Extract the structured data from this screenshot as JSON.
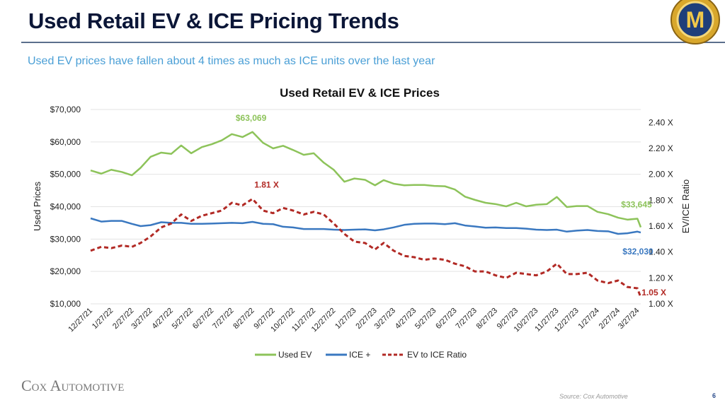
{
  "header": {
    "title": "Used Retail EV & ICE Pricing Trends",
    "subtitle": "Used EV prices have fallen about 4 times as much as ICE units over the last year",
    "logo_text": "M"
  },
  "footer": {
    "brand": "Cox Automotive",
    "source": "Source: Cox Automotive",
    "page": "6"
  },
  "colors": {
    "ev": "#8dc35a",
    "ice": "#3a78c0",
    "ratio": "#b22a25",
    "title": "#0b1637",
    "subtitle": "#4a9fd6",
    "grid": "#e3e3e3"
  },
  "chart_data": {
    "type": "line",
    "title": "Used Retail EV & ICE Prices",
    "ylabel": "Used Prices",
    "y2label": "EV/ICE Ratio",
    "ylim": [
      10000,
      70000
    ],
    "y2lim": [
      1.0,
      2.5
    ],
    "grid": true,
    "legend": "bottom",
    "yticks": [
      "$10,000",
      "$20,000",
      "$30,000",
      "$40,000",
      "$50,000",
      "$60,000",
      "$70,000"
    ],
    "y2ticks": [
      "1.00 X",
      "1.20 X",
      "1.40 X",
      "1.60 X",
      "1.80 X",
      "2.00 X",
      "2.20 X",
      "2.40 X"
    ],
    "xticks": [
      "12/27/21",
      "1/27/22",
      "2/27/22",
      "3/27/22",
      "4/27/22",
      "5/27/22",
      "6/27/22",
      "7/27/22",
      "8/27/22",
      "9/27/22",
      "10/27/22",
      "11/27/22",
      "12/27/22",
      "1/27/23",
      "2/27/23",
      "3/27/23",
      "4/27/23",
      "5/27/23",
      "6/27/23",
      "7/27/23",
      "8/27/23",
      "9/27/23",
      "10/27/23",
      "11/27/23",
      "12/27/23",
      "1/27/24",
      "2/27/24",
      "3/27/24"
    ],
    "x": [
      "2021-12-27",
      "2022-01-12",
      "2022-01-27",
      "2022-02-12",
      "2022-02-27",
      "2022-03-12",
      "2022-03-27",
      "2022-04-12",
      "2022-04-27",
      "2022-05-12",
      "2022-05-27",
      "2022-06-12",
      "2022-06-27",
      "2022-07-12",
      "2022-07-27",
      "2022-08-12",
      "2022-08-27",
      "2022-09-12",
      "2022-09-27",
      "2022-10-12",
      "2022-10-27",
      "2022-11-12",
      "2022-11-27",
      "2022-12-12",
      "2022-12-27",
      "2023-01-12",
      "2023-01-27",
      "2023-02-12",
      "2023-02-27",
      "2023-03-12",
      "2023-03-27",
      "2023-04-12",
      "2023-04-27",
      "2023-05-12",
      "2023-05-27",
      "2023-06-12",
      "2023-06-27",
      "2023-07-12",
      "2023-07-27",
      "2023-08-12",
      "2023-08-27",
      "2023-09-12",
      "2023-09-27",
      "2023-10-12",
      "2023-10-27",
      "2023-11-12",
      "2023-11-27",
      "2023-12-12",
      "2023-12-27",
      "2024-01-12",
      "2024-01-27",
      "2024-02-12",
      "2024-02-27",
      "2024-03-12",
      "2024-03-27",
      "2024-04-01"
    ],
    "series": [
      {
        "name": "Used EV",
        "axis": "left",
        "style": "solid",
        "values": [
          51200,
          50200,
          51400,
          50700,
          49700,
          52000,
          55400,
          56700,
          56300,
          58900,
          56500,
          58400,
          59300,
          60500,
          62400,
          61500,
          63069,
          59700,
          58000,
          58800,
          57500,
          56000,
          56500,
          53600,
          51400,
          47700,
          48700,
          48300,
          46600,
          48200,
          47100,
          46600,
          46700,
          46700,
          46400,
          46300,
          45300,
          43100,
          42100,
          41200,
          40800,
          40100,
          41200,
          40100,
          40600,
          40800,
          43000,
          39900,
          40200,
          40200,
          38400,
          37700,
          36600,
          36000,
          36300,
          33645
        ]
      },
      {
        "name": "ICE +",
        "axis": "left",
        "style": "solid",
        "values": [
          36400,
          35400,
          35600,
          35600,
          34700,
          34000,
          34300,
          35200,
          35000,
          35000,
          34700,
          34700,
          34800,
          34900,
          35000,
          34900,
          35300,
          34700,
          34600,
          33800,
          33600,
          33100,
          33100,
          33100,
          32900,
          32800,
          32900,
          33000,
          32700,
          33000,
          33600,
          34400,
          34700,
          34800,
          34800,
          34600,
          34900,
          34200,
          33900,
          33500,
          33600,
          33400,
          33400,
          33200,
          32900,
          32800,
          32900,
          32300,
          32600,
          32800,
          32500,
          32400,
          31600,
          31800,
          32300,
          32030
        ]
      },
      {
        "name": "EV to ICE Ratio",
        "axis": "right",
        "style": "dashed",
        "values": [
          1.41,
          1.44,
          1.43,
          1.45,
          1.44,
          1.47,
          1.52,
          1.59,
          1.62,
          1.69,
          1.64,
          1.68,
          1.7,
          1.72,
          1.78,
          1.76,
          1.81,
          1.72,
          1.7,
          1.74,
          1.72,
          1.69,
          1.71,
          1.69,
          1.62,
          1.54,
          1.48,
          1.47,
          1.42,
          1.47,
          1.41,
          1.37,
          1.36,
          1.34,
          1.35,
          1.34,
          1.31,
          1.29,
          1.25,
          1.25,
          1.22,
          1.2,
          1.24,
          1.23,
          1.22,
          1.25,
          1.31,
          1.23,
          1.23,
          1.24,
          1.18,
          1.16,
          1.18,
          1.13,
          1.12,
          1.05
        ]
      }
    ],
    "annotations": [
      {
        "series": "Used EV",
        "text": "$63,069"
      },
      {
        "series": "EV to ICE Ratio",
        "text": "1.81 X"
      },
      {
        "series": "Used EV",
        "text": "$33,645"
      },
      {
        "series": "ICE +",
        "text": "$32,030"
      },
      {
        "series": "EV to ICE Ratio",
        "text": "1.05 X"
      }
    ]
  }
}
